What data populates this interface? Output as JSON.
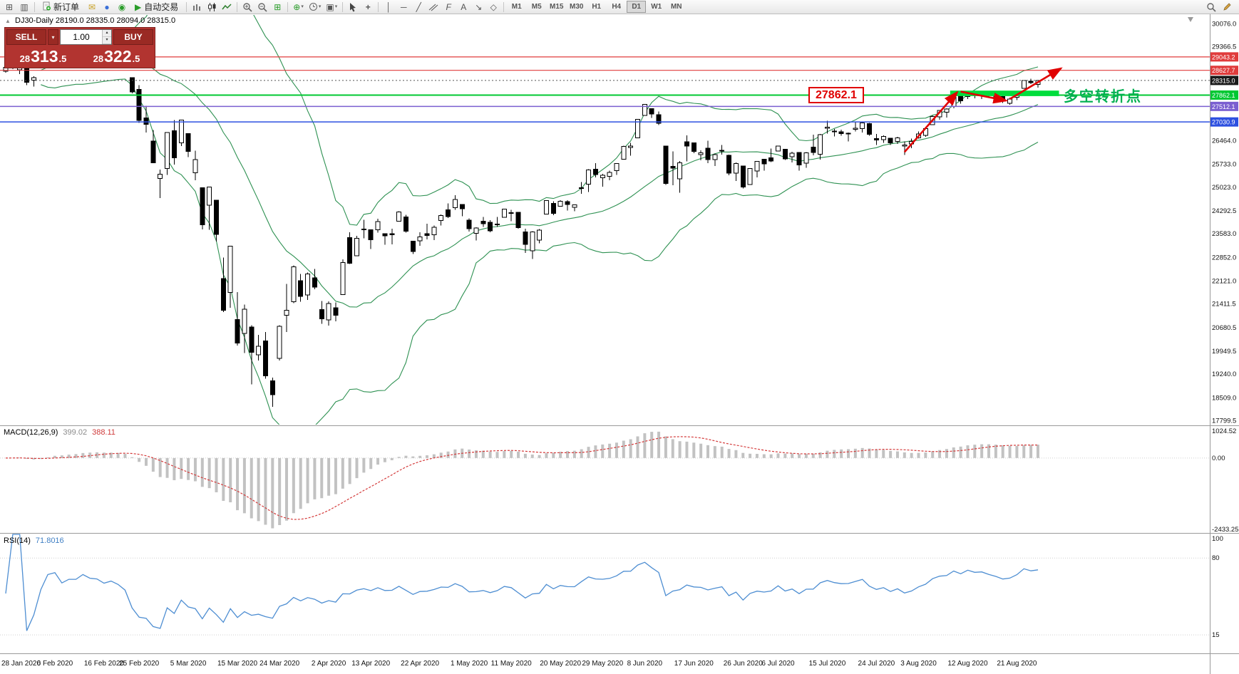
{
  "toolbar": {
    "new_order_label": "新订单",
    "autotrade_label": "自动交易",
    "timeframes": [
      "M1",
      "M5",
      "M15",
      "M30",
      "H1",
      "H4",
      "D1",
      "W1",
      "MN"
    ],
    "active_timeframe": "D1"
  },
  "symbol_info": "DJ30-Daily 28190.0 28335.0 28094.0 28315.0",
  "trade_panel": {
    "sell_label": "SELL",
    "buy_label": "BUY",
    "volume": "1.00",
    "sell_price": {
      "prefix": "28",
      "big": "313",
      "suffix": ".5"
    },
    "buy_price": {
      "prefix": "28",
      "big": "322",
      "suffix": ".5"
    }
  },
  "annotations": {
    "price_box": "27862.1",
    "turning_point": "多空转折点"
  },
  "main_axis": {
    "max": 30076.0,
    "min": 17799.5,
    "labels": [
      30076.0,
      29366.5,
      26464.0,
      25733.0,
      25023.0,
      24292.5,
      23583.0,
      22852.0,
      22121.0,
      21411.5,
      20680.5,
      19949.5,
      19240.0,
      18509.0,
      17799.5
    ]
  },
  "price_lines": [
    {
      "price": 29043.2,
      "color": "#e03c3c",
      "width": 1.2
    },
    {
      "price": 28627.7,
      "color": "#e03c3c",
      "width": 1.2
    },
    {
      "price": 27862.1,
      "color": "#00c832",
      "width": 2
    },
    {
      "price": 27512.1,
      "color": "#7a5fd0",
      "width": 1.5
    },
    {
      "price": 27030.9,
      "color": "#2d50e0",
      "width": 1.5
    }
  ],
  "current_price": {
    "price": 28315.0,
    "badge_color": "#1a1a1a"
  },
  "zone": {
    "i1": 134.5,
    "i2": 150,
    "p1": 28000,
    "p2": 27830,
    "color": "#00dd3c"
  },
  "arrows": [
    {
      "i1": 128,
      "p1": 26100,
      "i2": 135.5,
      "p2": 27950
    },
    {
      "i1": 136,
      "p1": 27970,
      "i2": 142.5,
      "p2": 27690
    },
    {
      "i1": 143,
      "p1": 27740,
      "i2": 150.3,
      "p2": 28690
    }
  ],
  "macd": {
    "name": "MACD(12,26,9)",
    "value_main": "399.02",
    "value_signal": "388.11",
    "axis_max": 1024.52,
    "axis_min": -2433.25,
    "axis_labels": [
      "1024.52",
      "0.00",
      "-2433.25"
    ]
  },
  "rsi": {
    "name": "RSI(14)",
    "value": "71.8016",
    "levels": [
      80,
      15
    ],
    "axis_labels": [
      "100",
      "80",
      "15"
    ]
  },
  "date_axis": [
    {
      "label": "28 Jan 2020",
      "i": 0
    },
    {
      "label": "6 Feb 2020",
      "i": 7
    },
    {
      "label": "16 Feb 2020",
      "i": 14
    },
    {
      "label": "25 Feb 2020",
      "i": 19
    },
    {
      "label": "5 Mar 2020",
      "i": 26
    },
    {
      "label": "15 Mar 2020",
      "i": 33
    },
    {
      "label": "24 Mar 2020",
      "i": 39
    },
    {
      "label": "2 Apr 2020",
      "i": 46
    },
    {
      "label": "13 Apr 2020",
      "i": 52
    },
    {
      "label": "22 Apr 2020",
      "i": 59
    },
    {
      "label": "1 May 2020",
      "i": 66
    },
    {
      "label": "11 May 2020",
      "i": 72
    },
    {
      "label": "20 May 2020",
      "i": 79
    },
    {
      "label": "29 May 2020",
      "i": 85
    },
    {
      "label": "8 Jun 2020",
      "i": 91
    },
    {
      "label": "17 Jun 2020",
      "i": 98
    },
    {
      "label": "26 Jun 2020",
      "i": 105
    },
    {
      "label": "6 Jul 2020",
      "i": 110
    },
    {
      "label": "15 Jul 2020",
      "i": 117
    },
    {
      "label": "24 Jul 2020",
      "i": 124
    },
    {
      "label": "3 Aug 2020",
      "i": 130
    },
    {
      "label": "12 Aug 2020",
      "i": 137
    },
    {
      "label": "21 Aug 2020",
      "i": 144
    }
  ],
  "chart_data": {
    "type": "candlestick",
    "symbol": "DJ30",
    "period": "Daily",
    "bollinger_period": 20,
    "bollinger_deviation": 2,
    "ohlc": [
      [
        28595,
        28945,
        28558,
        28722
      ],
      [
        28820,
        28893,
        28668,
        28734
      ],
      [
        28640,
        28890,
        28510,
        28859
      ],
      [
        28813,
        28814,
        28169,
        28256
      ],
      [
        28320,
        28450,
        28130,
        28400
      ],
      [
        28697,
        28905,
        28697,
        28808
      ],
      [
        29049,
        29308,
        28950,
        29290
      ],
      [
        29297,
        29409,
        29246,
        29380
      ],
      [
        29286,
        29286,
        28951,
        29103
      ],
      [
        29057,
        29287,
        28996,
        29277
      ],
      [
        29388,
        29415,
        29211,
        29276
      ],
      [
        29407,
        29568,
        29394,
        29551
      ],
      [
        29407,
        29535,
        29332,
        29423
      ],
      [
        29430,
        29481,
        29328,
        29398
      ],
      [
        29282,
        29330,
        29049,
        29232
      ],
      [
        29283,
        29409,
        29234,
        29348
      ],
      [
        29292,
        29368,
        28960,
        29220
      ],
      [
        29146,
        29146,
        28760,
        28992
      ],
      [
        28403,
        28403,
        27912,
        27961
      ],
      [
        28037,
        28169,
        26998,
        27081
      ],
      [
        27160,
        27532,
        26705,
        26958
      ],
      [
        26440,
        26778,
        25752,
        25767
      ],
      [
        25282,
        25560,
        24681,
        25409
      ],
      [
        25591,
        26706,
        25392,
        26703
      ],
      [
        26763,
        27085,
        25707,
        25917
      ],
      [
        26388,
        27102,
        26286,
        27091
      ],
      [
        26671,
        26671,
        25944,
        26121
      ],
      [
        25457,
        26146,
        25227,
        25865
      ],
      [
        24992,
        24992,
        23707,
        23851
      ],
      [
        24453,
        25020,
        23691,
        25018
      ],
      [
        24605,
        24605,
        23328,
        23553
      ],
      [
        22184,
        22837,
        21154,
        21201
      ],
      [
        21751,
        23189,
        21286,
        23186
      ],
      [
        20917,
        21768,
        20117,
        20188
      ],
      [
        20488,
        21379,
        19882,
        21237
      ],
      [
        20688,
        20742,
        18917,
        19899
      ],
      [
        19831,
        20442,
        19650,
        20087
      ],
      [
        20254,
        20531,
        19094,
        19174
      ],
      [
        19028,
        19121,
        18214,
        18592
      ],
      [
        19722,
        20738,
        19649,
        20705
      ],
      [
        21050,
        22020,
        20538,
        21200
      ],
      [
        21468,
        22595,
        21427,
        22552
      ],
      [
        22119,
        22327,
        21469,
        21637
      ],
      [
        21678,
        22378,
        21522,
        22327
      ],
      [
        22208,
        22482,
        21852,
        21917
      ],
      [
        21227,
        21487,
        20784,
        20944
      ],
      [
        20908,
        21477,
        20735,
        21413
      ],
      [
        21282,
        21447,
        20863,
        21053
      ],
      [
        21693,
        22783,
        21693,
        22680
      ],
      [
        23449,
        23617,
        22634,
        22654
      ],
      [
        22893,
        23513,
        22882,
        23434
      ],
      [
        23690,
        24009,
        23428,
        23719
      ],
      [
        23698,
        23698,
        23096,
        23391
      ],
      [
        23690,
        24040,
        23611,
        23950
      ],
      [
        23577,
        23579,
        23228,
        23504
      ],
      [
        23577,
        23723,
        23242,
        23538
      ],
      [
        23961,
        24264,
        23961,
        24242
      ],
      [
        24093,
        24155,
        23611,
        23650
      ],
      [
        23345,
        23345,
        22942,
        23019
      ],
      [
        23351,
        23613,
        23201,
        23476
      ],
      [
        23576,
        23885,
        23397,
        23515
      ],
      [
        23539,
        23828,
        23371,
        23775
      ],
      [
        23979,
        24168,
        23830,
        24134
      ],
      [
        24310,
        24512,
        24054,
        24102
      ],
      [
        24375,
        24764,
        24311,
        24634
      ],
      [
        24474,
        24474,
        24117,
        24346
      ],
      [
        23991,
        24049,
        23645,
        23724
      ],
      [
        23581,
        23771,
        23361,
        23749
      ],
      [
        23958,
        24094,
        23785,
        23883
      ],
      [
        23930,
        23995,
        23617,
        23665
      ],
      [
        23870,
        24094,
        23786,
        23876
      ],
      [
        24085,
        24349,
        24085,
        24331
      ],
      [
        24222,
        24314,
        23963,
        24222
      ],
      [
        24232,
        24232,
        23725,
        23765
      ],
      [
        23628,
        23725,
        22979,
        23248
      ],
      [
        23049,
        23653,
        22790,
        23625
      ],
      [
        23380,
        23717,
        23280,
        23685
      ],
      [
        24182,
        24602,
        24182,
        24597
      ],
      [
        24508,
        24578,
        24149,
        24207
      ],
      [
        24419,
        24615,
        24419,
        24576
      ],
      [
        24563,
        24613,
        24294,
        24474
      ],
      [
        24388,
        24482,
        24268,
        24465
      ],
      [
        24995,
        25176,
        24809,
        24995
      ],
      [
        25110,
        25572,
        24866,
        25548
      ],
      [
        25573,
        25758,
        25314,
        25401
      ],
      [
        25301,
        25420,
        25031,
        25383
      ],
      [
        25343,
        25523,
        25232,
        25475
      ],
      [
        25520,
        25743,
        25391,
        25743
      ],
      [
        25880,
        26296,
        25880,
        26270
      ],
      [
        26245,
        26384,
        25992,
        26282
      ],
      [
        26542,
        27111,
        26542,
        27111
      ],
      [
        27232,
        27580,
        27232,
        27572
      ],
      [
        27447,
        27447,
        27151,
        27272
      ],
      [
        27251,
        27355,
        26938,
        26990
      ],
      [
        26282,
        26294,
        25082,
        25128
      ],
      [
        25658,
        26120,
        25078,
        25605
      ],
      [
        25270,
        25826,
        24843,
        25763
      ],
      [
        26419,
        26611,
        25811,
        26290
      ],
      [
        26386,
        26400,
        26068,
        26120
      ],
      [
        26016,
        26155,
        25848,
        26080
      ],
      [
        26214,
        26451,
        25759,
        25871
      ],
      [
        25865,
        26059,
        25667,
        26025
      ],
      [
        26155,
        26314,
        26022,
        26156
      ],
      [
        26002,
        26022,
        25378,
        25446
      ],
      [
        25443,
        25777,
        25209,
        25746
      ],
      [
        25667,
        25667,
        24971,
        25016
      ],
      [
        25090,
        25602,
        25090,
        25596
      ],
      [
        25516,
        25813,
        25320,
        25813
      ],
      [
        25880,
        25880,
        25523,
        25735
      ],
      [
        25917,
        26204,
        25787,
        25827
      ],
      [
        26128,
        26294,
        26128,
        26287
      ],
      [
        26181,
        26181,
        25852,
        25890
      ],
      [
        25952,
        26109,
        25777,
        26067
      ],
      [
        26087,
        26087,
        25523,
        25706
      ],
      [
        25752,
        26098,
        25614,
        26075
      ],
      [
        26253,
        26639,
        25994,
        26086
      ],
      [
        26031,
        26661,
        25864,
        26643
      ],
      [
        26834,
        27071,
        26673,
        26870
      ],
      [
        26744,
        26817,
        26583,
        26735
      ],
      [
        26723,
        26787,
        26605,
        26672
      ],
      [
        26658,
        26702,
        26425,
        26681
      ],
      [
        26807,
        27036,
        26738,
        26840
      ],
      [
        26825,
        27018,
        26707,
        27006
      ],
      [
        26984,
        27003,
        26606,
        26652
      ],
      [
        26517,
        26658,
        26316,
        26470
      ],
      [
        26480,
        26617,
        26384,
        26584
      ],
      [
        26525,
        26525,
        26318,
        26379
      ],
      [
        26430,
        26576,
        26346,
        26539
      ],
      [
        26283,
        26432,
        26013,
        26313
      ],
      [
        26356,
        26518,
        26216,
        26428
      ],
      [
        26543,
        26734,
        26517,
        26664
      ],
      [
        26620,
        26847,
        26571,
        26828
      ],
      [
        26945,
        27234,
        26945,
        27201
      ],
      [
        27186,
        27390,
        27096,
        27387
      ],
      [
        27334,
        27453,
        27165,
        27433
      ],
      [
        27512,
        27799,
        27454,
        27791
      ],
      [
        27857,
        27915,
        27600,
        27686
      ],
      [
        27815,
        27977,
        27738,
        27977
      ],
      [
        27918,
        27965,
        27763,
        27897
      ],
      [
        27866,
        27959,
        27744,
        27931
      ],
      [
        27958,
        27958,
        27773,
        27845
      ],
      [
        27861,
        27870,
        27646,
        27778
      ],
      [
        27819,
        27949,
        27620,
        27693
      ],
      [
        27610,
        27780,
        27567,
        27740
      ],
      [
        27798,
        27959,
        27712,
        27930
      ],
      [
        28066,
        28326,
        28066,
        28309
      ],
      [
        28295,
        28370,
        28206,
        28248
      ],
      [
        28190,
        28335,
        28094,
        28315
      ]
    ]
  }
}
